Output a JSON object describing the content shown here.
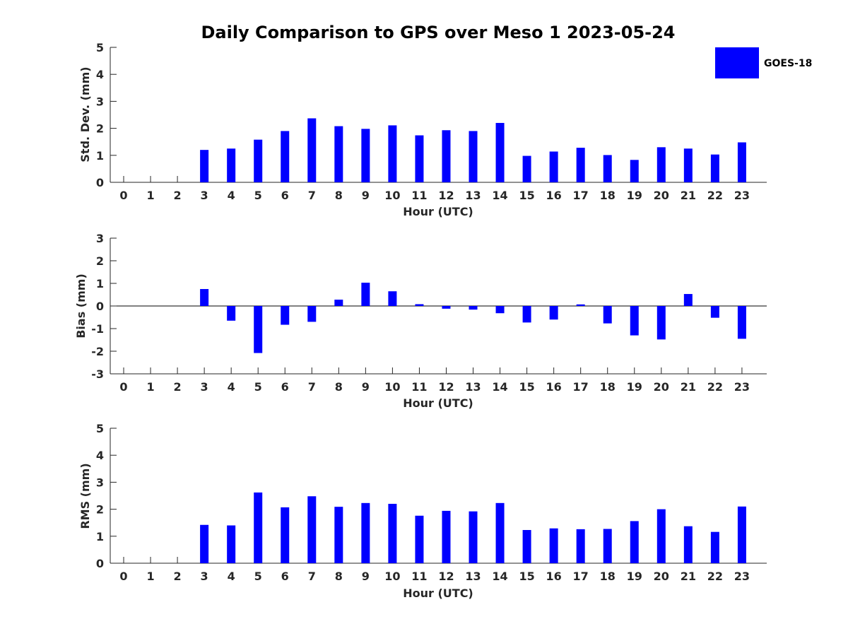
{
  "title": "Daily Comparison to GPS over Meso 1 2023-05-24",
  "legend": {
    "label": "GOES-18",
    "color": "#0000ff"
  },
  "chart_data": [
    {
      "type": "bar",
      "categories": [
        "0",
        "1",
        "2",
        "3",
        "4",
        "5",
        "6",
        "7",
        "8",
        "9",
        "10",
        "11",
        "12",
        "13",
        "14",
        "15",
        "16",
        "17",
        "18",
        "19",
        "20",
        "21",
        "22",
        "23"
      ],
      "series": [
        {
          "name": "GOES-18",
          "values": [
            null,
            null,
            null,
            1.2,
            1.25,
            1.58,
            1.9,
            2.37,
            2.08,
            1.98,
            2.11,
            1.74,
            1.93,
            1.9,
            2.2,
            0.98,
            1.14,
            1.28,
            1.01,
            0.83,
            1.3,
            1.25,
            1.03,
            1.48
          ]
        }
      ],
      "xlabel": "Hour (UTC)",
      "ylabel": "Std. Dev. (mm)",
      "ylim": [
        0,
        5
      ],
      "yticks": [
        "0",
        "1",
        "2",
        "3",
        "4",
        "5"
      ]
    },
    {
      "type": "bar",
      "categories": [
        "0",
        "1",
        "2",
        "3",
        "4",
        "5",
        "6",
        "7",
        "8",
        "9",
        "10",
        "11",
        "12",
        "13",
        "14",
        "15",
        "16",
        "17",
        "18",
        "19",
        "20",
        "21",
        "22",
        "23"
      ],
      "series": [
        {
          "name": "GOES-18",
          "values": [
            null,
            null,
            null,
            0.75,
            -0.65,
            -2.08,
            -0.83,
            -0.7,
            0.28,
            1.03,
            0.65,
            0.08,
            -0.12,
            -0.16,
            -0.32,
            -0.73,
            -0.6,
            0.07,
            -0.77,
            -1.3,
            -1.48,
            0.53,
            -0.52,
            -1.45
          ]
        }
      ],
      "xlabel": "Hour (UTC)",
      "ylabel": "Bias (mm)",
      "ylim": [
        -3,
        3
      ],
      "yticks": [
        "-3",
        "-2",
        "-1",
        "0",
        "1",
        "2",
        "3"
      ]
    },
    {
      "type": "bar",
      "categories": [
        "0",
        "1",
        "2",
        "3",
        "4",
        "5",
        "6",
        "7",
        "8",
        "9",
        "10",
        "11",
        "12",
        "13",
        "14",
        "15",
        "16",
        "17",
        "18",
        "19",
        "20",
        "21",
        "22",
        "23"
      ],
      "series": [
        {
          "name": "GOES-18",
          "values": [
            null,
            null,
            null,
            1.42,
            1.4,
            2.62,
            2.07,
            2.48,
            2.09,
            2.23,
            2.2,
            1.76,
            1.94,
            1.92,
            2.23,
            1.23,
            1.29,
            1.26,
            1.27,
            1.56,
            2.0,
            1.37,
            1.16,
            2.1
          ]
        }
      ],
      "xlabel": "Hour (UTC)",
      "ylabel": "RMS (mm)",
      "ylim": [
        0,
        5
      ],
      "yticks": [
        "0",
        "1",
        "2",
        "3",
        "4",
        "5"
      ]
    }
  ]
}
